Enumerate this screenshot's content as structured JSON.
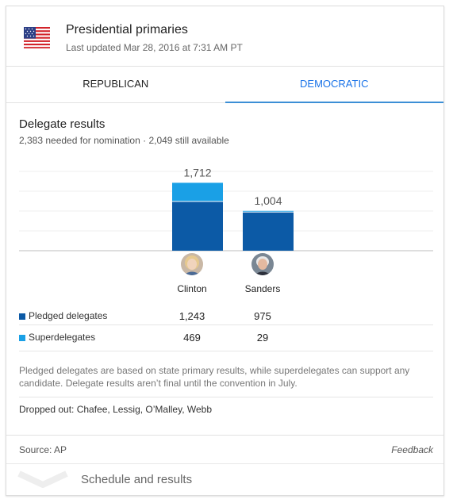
{
  "header": {
    "icon": "us-flag-icon",
    "title": "Presidential primaries",
    "subtitle": "Last updated Mar 28, 2016 at 7:31 AM PT"
  },
  "tabs": [
    {
      "label": "REPUBLICAN",
      "active": false
    },
    {
      "label": "DEMOCRATIC",
      "active": true
    }
  ],
  "section": {
    "title": "Delegate results",
    "subtitle": "2,383 needed for nomination · 2,049 still available"
  },
  "colors": {
    "pledged": "#0c5aa6",
    "super": "#1aa0e6",
    "accent": "#1a73e8"
  },
  "candidates": [
    {
      "name": "Clinton",
      "total_label": "1,712",
      "pledged": "1,243",
      "super": "469"
    },
    {
      "name": "Sanders",
      "total_label": "1,004",
      "pledged": "975",
      "super": "29"
    }
  ],
  "chart_data": {
    "type": "bar",
    "stacked": true,
    "categories": [
      "Clinton",
      "Sanders"
    ],
    "series": [
      {
        "name": "Pledged delegates",
        "values": [
          1243,
          975
        ]
      },
      {
        "name": "Superdelegates",
        "values": [
          469,
          29
        ]
      }
    ],
    "totals": [
      1712,
      1004
    ],
    "ylim": [
      0,
      2200
    ],
    "grid": true
  },
  "legend": {
    "pledged_label": "Pledged delegates",
    "super_label": "Superdelegates"
  },
  "note": "Pledged delegates are based on state primary results, while superdelegates can support any candidate. Delegate results aren’t final until the convention in July.",
  "dropped": "Dropped out: Chafee, Lessig, O’Malley, Webb",
  "footer": {
    "source": "Source: AP",
    "feedback": "Feedback"
  },
  "schedule": {
    "label": "Schedule and results",
    "icon": "chevron-down-icon"
  }
}
